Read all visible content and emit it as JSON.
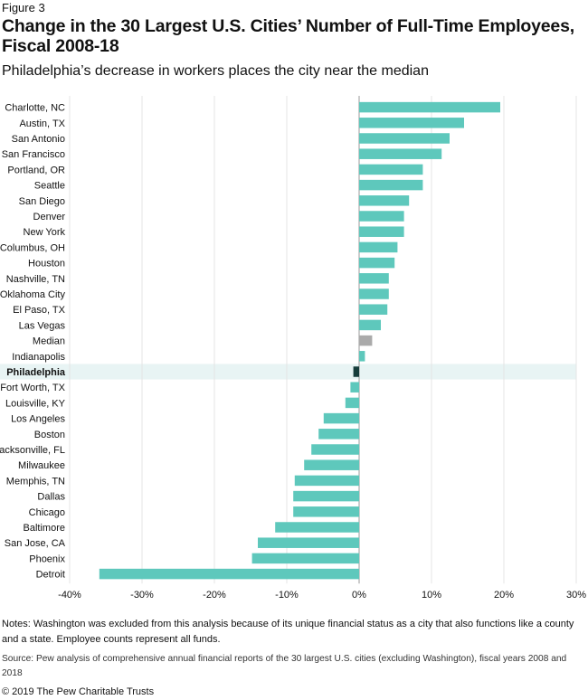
{
  "figure_label": "Figure 3",
  "notes": "Notes: Washington was excluded from this analysis because of its unique financial status as a city that also functions like a county and a state. Employee counts represent all funds.",
  "source": "Source: Pew analysis of comprehensive annual financial reports of the 30 largest U.S. cities (excluding Washington), fiscal years 2008 and 2018",
  "copyright": "© 2019 The Pew Charitable Trusts",
  "colors": {
    "bar": "#5ec8bc",
    "median": "#aaaaaa",
    "highlight_bar": "#173d3b",
    "highlight_band": "#e8f4f4",
    "grid": "#e4e4e4",
    "zero_line": "#9a9a9a"
  },
  "chart_data": {
    "type": "bar",
    "orientation": "horizontal",
    "title": "Change in the 30 Largest U.S. Cities’ Number of Full-Time Employees, Fiscal 2008-18",
    "subtitle": "Philadelphia’s decrease in workers places the city near the median",
    "xlabel": "",
    "ylabel": "",
    "xlim": [
      -40,
      30
    ],
    "ticks": [
      -40,
      -30,
      -20,
      -10,
      0,
      10,
      20,
      30
    ],
    "tick_labels": [
      "-40%",
      "-30%",
      "-20%",
      "-10%",
      "0%",
      "10%",
      "20%",
      "30%"
    ],
    "grid": true,
    "highlight": "Philadelphia",
    "median_category": "Median",
    "categories": [
      "Charlotte, NC",
      "Austin, TX",
      "San Antonio",
      "San Francisco",
      "Portland, OR",
      "Seattle",
      "San Diego",
      "Denver",
      "New York",
      "Columbus, OH",
      "Houston",
      "Nashville, TN",
      "Oklahoma City",
      "El Paso, TX",
      "Las Vegas",
      "Median",
      "Indianapolis",
      "Philadelphia",
      "Fort Worth, TX",
      "Louisville, KY",
      "Los Angeles",
      "Boston",
      "Jacksonville, FL",
      "Milwaukee",
      "Memphis, TN",
      "Dallas",
      "Chicago",
      "Baltimore",
      "San Jose, CA",
      "Phoenix",
      "Detroit"
    ],
    "values": [
      19.5,
      14.5,
      12.5,
      11.4,
      8.8,
      8.8,
      6.9,
      6.2,
      6.2,
      5.3,
      4.9,
      4.1,
      4.1,
      3.9,
      3.0,
      1.8,
      0.8,
      -0.8,
      -1.2,
      -1.9,
      -4.9,
      -5.6,
      -6.6,
      -7.6,
      -8.9,
      -9.1,
      -9.1,
      -11.6,
      -14.0,
      -14.8,
      -35.9
    ]
  }
}
